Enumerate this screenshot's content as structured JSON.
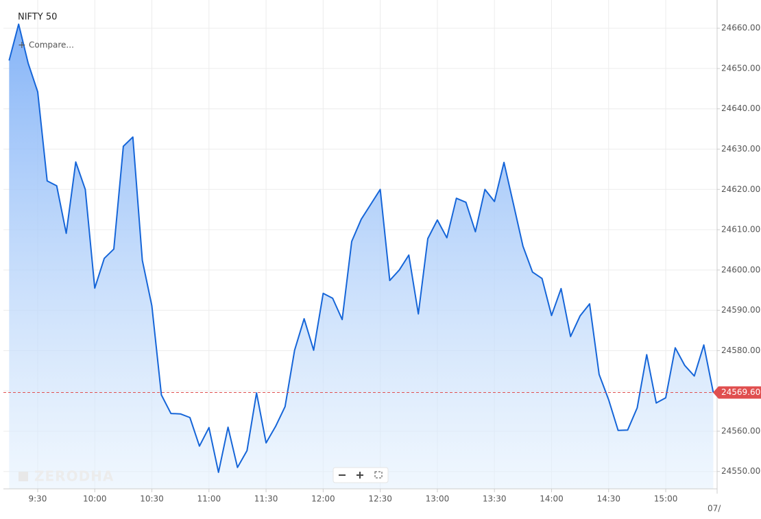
{
  "chart_data": {
    "type": "area",
    "title": "NIFTY 50",
    "compare_label": "Compare...",
    "watermark": "ZERODHA",
    "x_edge_label": "07/",
    "x": [
      "9:15",
      "9:20",
      "9:25",
      "9:30",
      "9:35",
      "9:40",
      "9:45",
      "9:50",
      "9:55",
      "10:00",
      "10:05",
      "10:10",
      "10:15",
      "10:20",
      "10:25",
      "10:30",
      "10:35",
      "10:40",
      "10:45",
      "10:50",
      "10:55",
      "11:00",
      "11:05",
      "11:10",
      "11:15",
      "11:20",
      "11:25",
      "11:30",
      "11:35",
      "11:40",
      "11:45",
      "11:50",
      "11:55",
      "12:00",
      "12:05",
      "12:10",
      "12:15",
      "12:20",
      "12:25",
      "12:30",
      "12:35",
      "12:40",
      "12:45",
      "12:50",
      "12:55",
      "13:00",
      "13:05",
      "13:10",
      "13:15",
      "13:20",
      "13:25",
      "13:30",
      "13:35",
      "13:40",
      "13:45",
      "13:50",
      "13:55",
      "14:00",
      "14:05",
      "14:10",
      "14:15",
      "14:20",
      "14:25",
      "14:30",
      "14:35",
      "14:40",
      "14:45",
      "14:50",
      "14:55",
      "15:00",
      "15:05",
      "15:10",
      "15:15",
      "15:20",
      "15:25"
    ],
    "series": [
      {
        "name": "NIFTY 50",
        "color": "#1565d8",
        "values": [
          24652,
          24661,
          24651.3,
          24644.2,
          24622.1,
          24620.9,
          24609.1,
          24626.8,
          24620,
          24595.5,
          24602.9,
          24605.2,
          24630.7,
          24633,
          24602.4,
          24591.1,
          24569,
          24564.4,
          24564.3,
          24563.4,
          24556.3,
          24560.9,
          24549.8,
          24561,
          24551,
          24555.2,
          24569.5,
          24557.1,
          24561.2,
          24566.1,
          24580.1,
          24587.9,
          24580.1,
          24594.2,
          24593,
          24587.7,
          24607.1,
          24612.6,
          24616.3,
          24620,
          24597.4,
          24600,
          24603.7,
          24589.1,
          24607.8,
          24612.4,
          24608,
          24617.8,
          24616.8,
          24609.5,
          24620,
          24617,
          24626.7,
          24616.3,
          24605.9,
          24599.5,
          24597.9,
          24588.7,
          24595.4,
          24583.5,
          24588.6,
          24591.6,
          24574.1,
          24567.8,
          24560.2,
          24560.3,
          24565.8,
          24579,
          24567,
          24568.3,
          24580.7,
          24576.3,
          24573.7,
          24581.4,
          24569.6
        ]
      }
    ],
    "last_price": {
      "value": 24569.6,
      "label": "24569.60",
      "color": "#e04f4f"
    },
    "xlim": [
      "9:12",
      "15:27"
    ],
    "xticks": [
      "9:30",
      "10:00",
      "10:30",
      "11:00",
      "11:30",
      "12:00",
      "12:30",
      "13:00",
      "13:30",
      "14:00",
      "14:30",
      "15:00"
    ],
    "ylim": [
      24545.7,
      24667.0
    ],
    "yticks": [
      {
        "value": 24550,
        "label": "24550.00"
      },
      {
        "value": 24560,
        "label": "24560.00"
      },
      {
        "value": 24570,
        "label": "24570.00"
      },
      {
        "value": 24580,
        "label": "24580.00"
      },
      {
        "value": 24590,
        "label": "24590.00"
      },
      {
        "value": 24600,
        "label": "24600.00"
      },
      {
        "value": 24610,
        "label": "24610.00"
      },
      {
        "value": 24620,
        "label": "24620.00"
      },
      {
        "value": 24630,
        "label": "24630.00"
      },
      {
        "value": 24640,
        "label": "24640.00"
      },
      {
        "value": 24650,
        "label": "24650.00"
      },
      {
        "value": 24660,
        "label": "24660.00"
      }
    ],
    "grid": true
  }
}
